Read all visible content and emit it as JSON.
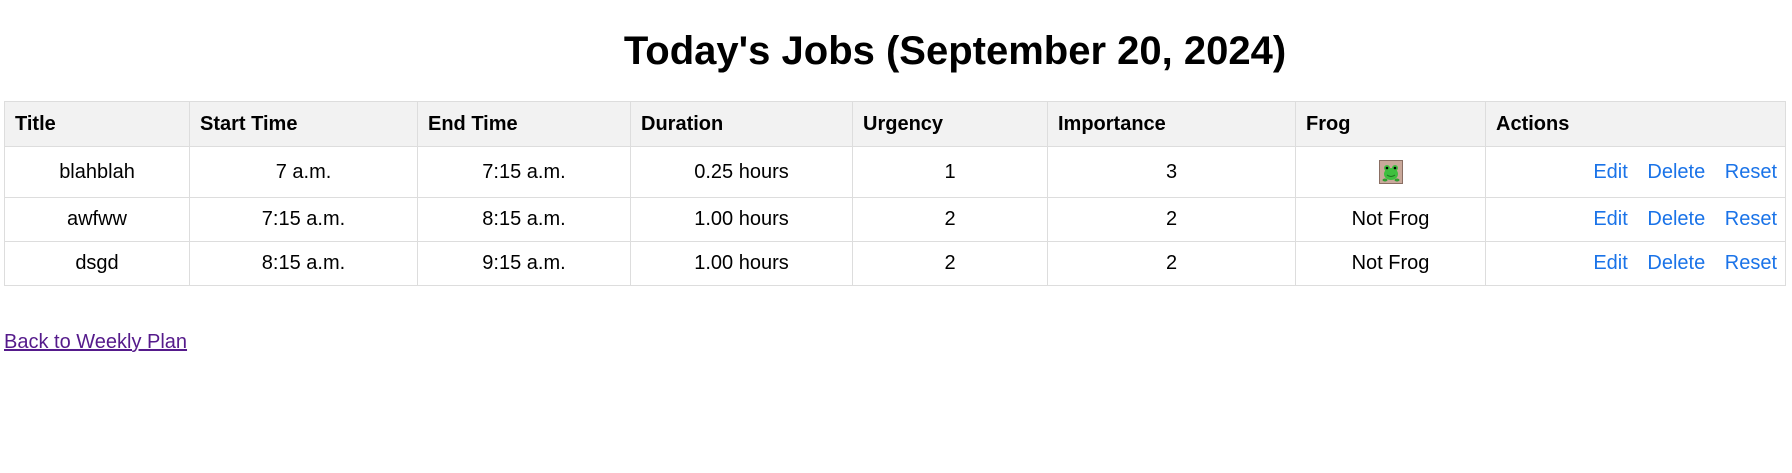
{
  "page": {
    "title": "Today's Jobs (September 20, 2024)"
  },
  "table": {
    "headers": {
      "title": "Title",
      "start_time": "Start Time",
      "end_time": "End Time",
      "duration": "Duration",
      "urgency": "Urgency",
      "importance": "Importance",
      "frog": "Frog",
      "actions": "Actions"
    },
    "rows": [
      {
        "title": "blahblah",
        "start_time": "7 a.m.",
        "end_time": "7:15 a.m.",
        "duration": "0.25 hours",
        "urgency": "1",
        "importance": "3",
        "frog": "",
        "frog_icon": "frog-icon",
        "actions": {
          "edit": "Edit",
          "delete": "Delete",
          "reset": "Reset"
        }
      },
      {
        "title": "awfww",
        "start_time": "7:15 a.m.",
        "end_time": "8:15 a.m.",
        "duration": "1.00 hours",
        "urgency": "2",
        "importance": "2",
        "frog": "Not Frog",
        "actions": {
          "edit": "Edit",
          "delete": "Delete",
          "reset": "Reset"
        }
      },
      {
        "title": "dsgd",
        "start_time": "8:15 a.m.",
        "end_time": "9:15 a.m.",
        "duration": "1.00 hours",
        "urgency": "2",
        "importance": "2",
        "frog": "Not Frog",
        "actions": {
          "edit": "Edit",
          "delete": "Delete",
          "reset": "Reset"
        }
      }
    ]
  },
  "footer": {
    "back_link": "Back to Weekly Plan"
  },
  "colors": {
    "action_link": "#1a73e8",
    "visited_link": "#551a8b",
    "header_bg": "#f2f2f2",
    "border": "#dddddd"
  }
}
